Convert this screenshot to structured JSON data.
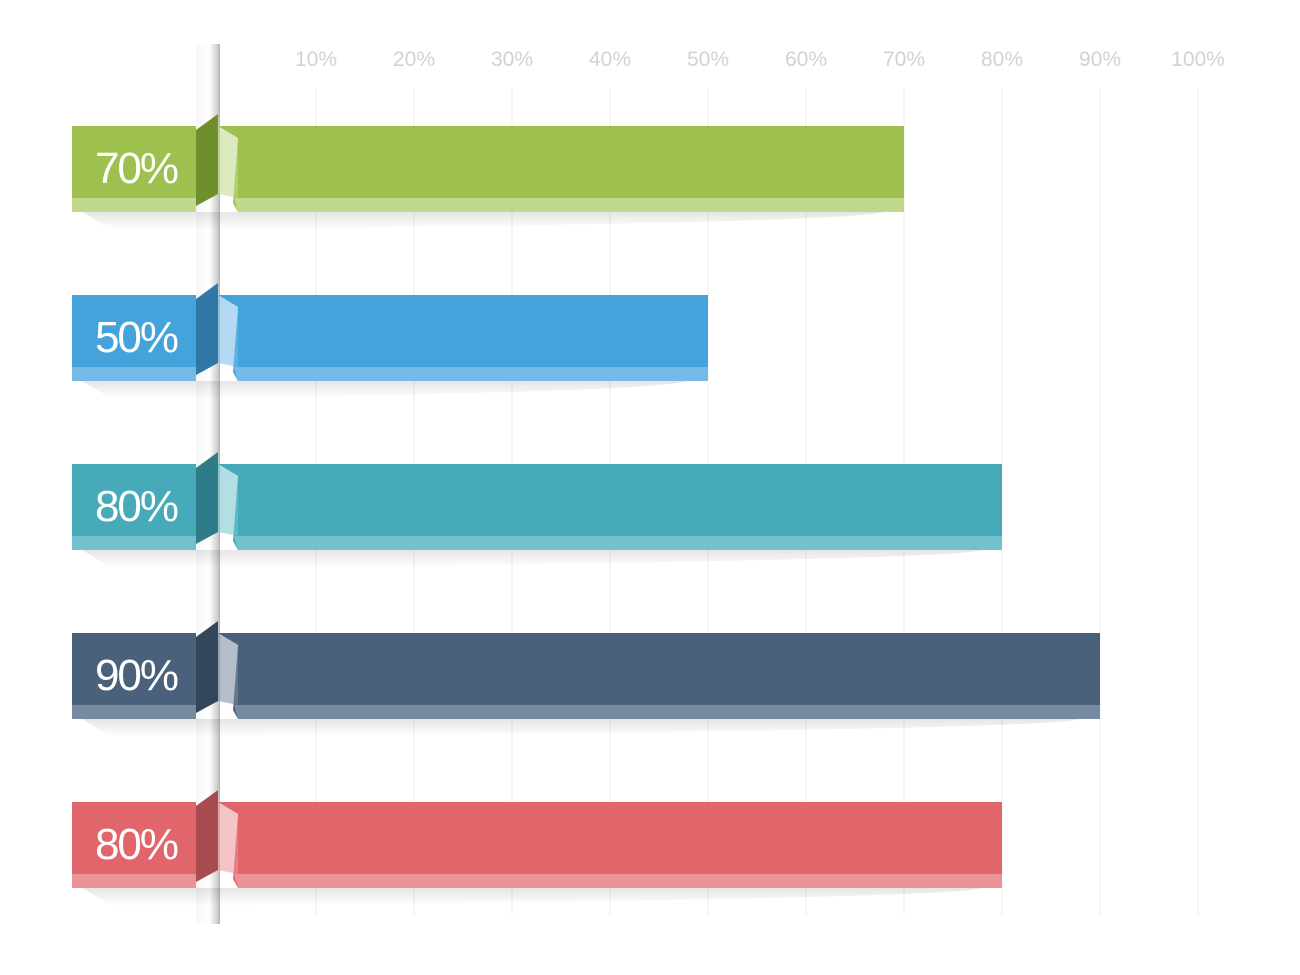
{
  "chart_data": {
    "type": "bar",
    "orientation": "horizontal",
    "title": "",
    "xlabel": "",
    "ylabel": "",
    "xlim": [
      0,
      100
    ],
    "grid": true,
    "ticks": [
      {
        "value": 10,
        "label": "10%"
      },
      {
        "value": 20,
        "label": "20%"
      },
      {
        "value": 30,
        "label": "30%"
      },
      {
        "value": 40,
        "label": "40%"
      },
      {
        "value": 50,
        "label": "50%"
      },
      {
        "value": 60,
        "label": "60%"
      },
      {
        "value": 70,
        "label": "70%"
      },
      {
        "value": 80,
        "label": "80%"
      },
      {
        "value": 90,
        "label": "90%"
      },
      {
        "value": 100,
        "label": "100%"
      }
    ],
    "bars": [
      {
        "value": 70,
        "label": "70%",
        "color": "#9dc04f",
        "light": "#bfd889",
        "dark": "#6f8f2d"
      },
      {
        "value": 50,
        "label": "50%",
        "color": "#45a3db",
        "light": "#74bbe8",
        "dark": "#2f78a6"
      },
      {
        "value": 80,
        "label": "80%",
        "color": "#47aab9",
        "light": "#72c2cd",
        "dark": "#2d7c88"
      },
      {
        "value": 90,
        "label": "90%",
        "color": "#4a617c",
        "light": "#788a9f",
        "dark": "#33465b"
      },
      {
        "value": 80,
        "label": "80%",
        "color": "#e0666b",
        "light": "#eb9497",
        "dark": "#a84c52"
      }
    ]
  }
}
